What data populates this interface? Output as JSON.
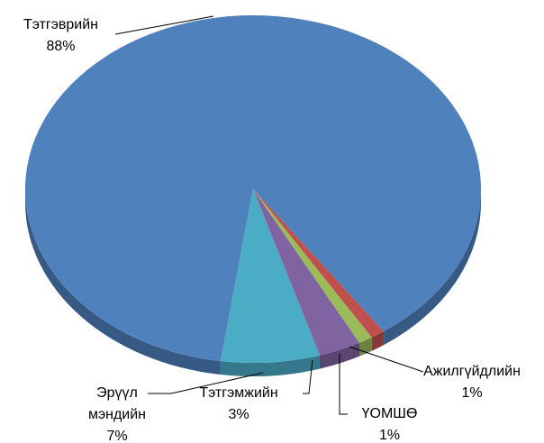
{
  "chart_data": {
    "type": "pie",
    "categories": [
      "Тэтгэврийн",
      "Эрүүл мэндийн",
      "Тэтгэмжийн",
      "ҮОМШӨ",
      "Ажилгүйдлийн"
    ],
    "values": [
      88,
      7,
      3,
      1,
      1
    ],
    "value_labels": [
      "88%",
      "7%",
      "3%",
      "1%",
      "1%"
    ],
    "colors": [
      "#4f81bd",
      "#4bacc6",
      "#8064a2",
      "#9bbb59",
      "#c0504d"
    ]
  }
}
